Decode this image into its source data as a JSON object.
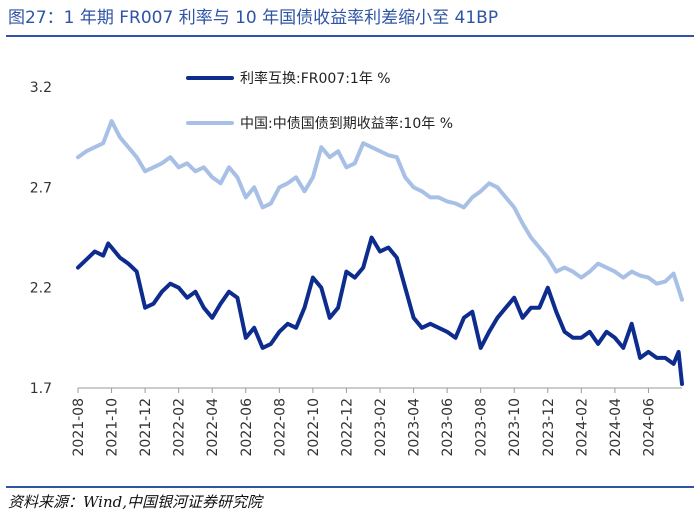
{
  "title": "图27：1 年期 FR007 利率与 10 年国债收益率利差缩小至 41BP",
  "source": "资料来源：Wind,中国银河证券研究院",
  "chart_data": {
    "type": "line",
    "title": "图27：1 年期 FR007 利率与 10 年国债收益率利差缩小至 41BP",
    "xlabel": "",
    "ylabel": "",
    "ylim": [
      1.7,
      3.2
    ],
    "yticks": [
      "3.2",
      "2.7",
      "2.2",
      "1.7"
    ],
    "ytick_values": [
      3.2,
      2.7,
      2.2,
      1.7
    ],
    "xticks": [
      "2021-08",
      "2021-10",
      "2021-12",
      "2022-02",
      "2022-04",
      "2022-06",
      "2022-08",
      "2022-10",
      "2022-12",
      "2023-02",
      "2023-04",
      "2023-06",
      "2023-08",
      "2023-10",
      "2023-12",
      "2024-02",
      "2024-04",
      "2024-06"
    ],
    "x_range_months": [
      0,
      36
    ],
    "grid": false,
    "legend_position": "top-left",
    "series": [
      {
        "name": "利率互换:FR007:1年  %",
        "color": "#0d2c8e",
        "x": [
          0,
          0.5,
          1,
          1.5,
          1.8,
          2,
          2.5,
          3,
          3.5,
          4,
          4.5,
          5,
          5.5,
          6,
          6.5,
          7,
          7.5,
          8,
          8.5,
          9,
          9.5,
          10,
          10.5,
          11,
          11.5,
          12,
          12.5,
          13,
          13.5,
          14,
          14.5,
          15,
          15.5,
          16,
          16.5,
          17,
          17.5,
          18,
          18.5,
          19,
          19.5,
          20,
          20.5,
          21,
          21.5,
          22,
          22.5,
          23,
          23.5,
          24,
          24.5,
          25,
          25.5,
          26,
          26.5,
          27,
          27.5,
          28,
          28.5,
          29,
          29.5,
          30,
          30.5,
          31,
          31.5,
          32,
          32.5,
          33,
          33.5,
          34,
          34.5,
          35,
          35.5,
          35.8,
          36
        ],
        "values": [
          2.3,
          2.34,
          2.38,
          2.36,
          2.42,
          2.4,
          2.35,
          2.32,
          2.28,
          2.1,
          2.12,
          2.18,
          2.22,
          2.2,
          2.15,
          2.18,
          2.1,
          2.05,
          2.12,
          2.18,
          2.15,
          1.95,
          2.0,
          1.9,
          1.92,
          1.98,
          2.02,
          2.0,
          2.1,
          2.25,
          2.2,
          2.05,
          2.1,
          2.28,
          2.25,
          2.3,
          2.45,
          2.38,
          2.4,
          2.35,
          2.2,
          2.05,
          2.0,
          2.02,
          2.0,
          1.98,
          1.95,
          2.05,
          2.08,
          1.9,
          1.98,
          2.05,
          2.1,
          2.15,
          2.05,
          2.1,
          2.1,
          2.2,
          2.08,
          1.98,
          1.95,
          1.95,
          1.98,
          1.92,
          1.98,
          1.95,
          1.9,
          2.02,
          1.85,
          1.88,
          1.85,
          1.85,
          1.82,
          1.88,
          1.72
        ]
      },
      {
        "name": "中国:中债国债到期收益率:10年  %",
        "color": "#a8c0e6",
        "x": [
          0,
          0.5,
          1,
          1.5,
          2,
          2.5,
          3,
          3.5,
          4,
          4.5,
          5,
          5.5,
          6,
          6.5,
          7,
          7.5,
          8,
          8.5,
          9,
          9.5,
          10,
          10.5,
          11,
          11.5,
          12,
          12.5,
          13,
          13.5,
          14,
          14.5,
          15,
          15.5,
          16,
          16.5,
          17,
          17.5,
          18,
          18.5,
          19,
          19.5,
          20,
          20.5,
          21,
          21.5,
          22,
          22.5,
          23,
          23.5,
          24,
          24.5,
          25,
          25.5,
          26,
          26.5,
          27,
          27.5,
          28,
          28.5,
          29,
          29.5,
          30,
          30.5,
          31,
          31.5,
          32,
          32.5,
          33,
          33.5,
          34,
          34.5,
          35,
          35.5,
          36
        ],
        "values": [
          2.85,
          2.88,
          2.9,
          2.92,
          3.03,
          2.95,
          2.9,
          2.85,
          2.78,
          2.8,
          2.82,
          2.85,
          2.8,
          2.82,
          2.78,
          2.8,
          2.75,
          2.72,
          2.8,
          2.75,
          2.65,
          2.7,
          2.6,
          2.62,
          2.7,
          2.72,
          2.75,
          2.68,
          2.75,
          2.9,
          2.85,
          2.88,
          2.8,
          2.82,
          2.92,
          2.9,
          2.88,
          2.86,
          2.85,
          2.75,
          2.7,
          2.68,
          2.65,
          2.65,
          2.63,
          2.62,
          2.6,
          2.65,
          2.68,
          2.72,
          2.7,
          2.65,
          2.6,
          2.52,
          2.45,
          2.4,
          2.35,
          2.28,
          2.3,
          2.28,
          2.25,
          2.28,
          2.32,
          2.3,
          2.28,
          2.25,
          2.28,
          2.26,
          2.25,
          2.22,
          2.23,
          2.27,
          2.14
        ]
      }
    ]
  }
}
